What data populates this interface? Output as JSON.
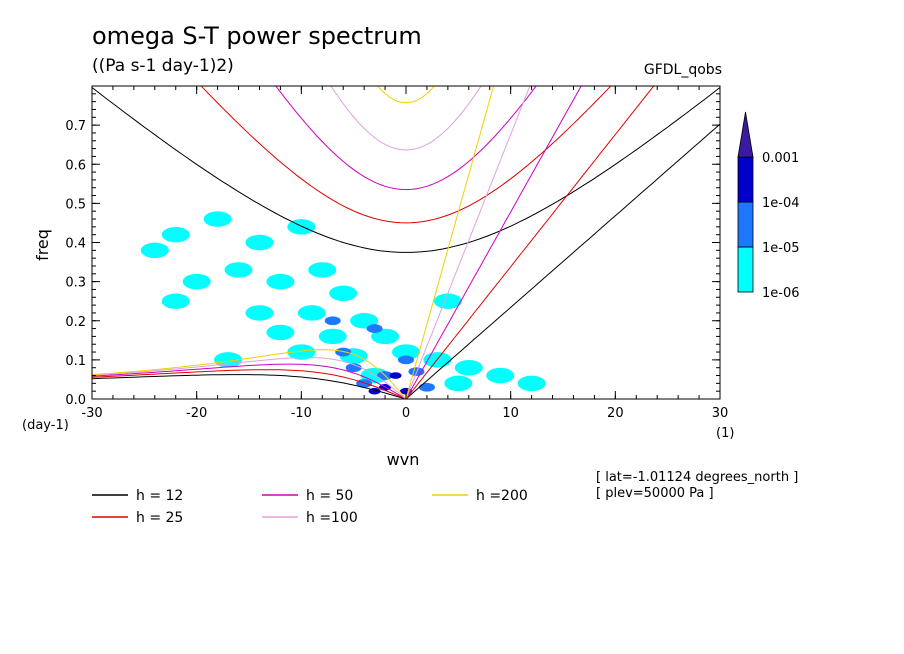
{
  "header": {
    "title": "omega S-T power spectrum",
    "units": "((Pa s-1 day-1)2)",
    "model": "GFDL_qobs"
  },
  "chart_data": {
    "type": "heatmap",
    "title": "omega S-T power spectrum",
    "subtitle": "((Pa s-1 day-1)2)",
    "xlabel": "wvn",
    "ylabel": "freq",
    "x_unit_label": "(1)",
    "y_unit_label": "(day-1)",
    "xlim": [
      -30,
      30
    ],
    "ylim": [
      0,
      0.8
    ],
    "xticks": [
      -30,
      -20,
      -10,
      0,
      10,
      20,
      30
    ],
    "yticks": [
      0.0,
      0.1,
      0.2,
      0.3,
      0.4,
      0.5,
      0.6,
      0.7
    ],
    "ytick_labels": [
      "0.0",
      "0.1",
      "0.2",
      "0.3",
      "0.4",
      "0.5",
      "0.6",
      "0.7"
    ],
    "colorbar": {
      "levels": [
        "1e-06",
        "1e-05",
        "1e-04",
        "0.001"
      ],
      "colors": [
        "#00ffff",
        "#1e78ff",
        "#0000cd",
        "#3a1aa0"
      ]
    },
    "power_blobs": [
      {
        "x": -22,
        "y": 0.42,
        "level": 0
      },
      {
        "x": -24,
        "y": 0.38,
        "level": 0
      },
      {
        "x": -18,
        "y": 0.46,
        "level": 0
      },
      {
        "x": -14,
        "y": 0.4,
        "level": 0
      },
      {
        "x": -10,
        "y": 0.44,
        "level": 0
      },
      {
        "x": -20,
        "y": 0.3,
        "level": 0
      },
      {
        "x": -16,
        "y": 0.33,
        "level": 0
      },
      {
        "x": -12,
        "y": 0.3,
        "level": 0
      },
      {
        "x": -8,
        "y": 0.33,
        "level": 0
      },
      {
        "x": -22,
        "y": 0.25,
        "level": 0
      },
      {
        "x": -6,
        "y": 0.27,
        "level": 0
      },
      {
        "x": -14,
        "y": 0.22,
        "level": 0
      },
      {
        "x": -9,
        "y": 0.22,
        "level": 0
      },
      {
        "x": -4,
        "y": 0.2,
        "level": 0
      },
      {
        "x": -12,
        "y": 0.17,
        "level": 0
      },
      {
        "x": -7,
        "y": 0.16,
        "level": 0
      },
      {
        "x": -2,
        "y": 0.16,
        "level": 0
      },
      {
        "x": -10,
        "y": 0.12,
        "level": 0
      },
      {
        "x": -5,
        "y": 0.11,
        "level": 0
      },
      {
        "x": 0,
        "y": 0.12,
        "level": 0
      },
      {
        "x": 3,
        "y": 0.1,
        "level": 0
      },
      {
        "x": 6,
        "y": 0.08,
        "level": 0
      },
      {
        "x": 9,
        "y": 0.06,
        "level": 0
      },
      {
        "x": 12,
        "y": 0.04,
        "level": 0
      },
      {
        "x": 4,
        "y": 0.25,
        "level": 0
      },
      {
        "x": 5,
        "y": 0.04,
        "level": 0
      },
      {
        "x": -3,
        "y": 0.06,
        "level": 0
      },
      {
        "x": -17,
        "y": 0.1,
        "level": 0
      },
      {
        "x": -7,
        "y": 0.2,
        "level": 1
      },
      {
        "x": -3,
        "y": 0.18,
        "level": 1
      },
      {
        "x": -5,
        "y": 0.08,
        "level": 1
      },
      {
        "x": -2,
        "y": 0.06,
        "level": 1
      },
      {
        "x": 1,
        "y": 0.07,
        "level": 1
      },
      {
        "x": 2,
        "y": 0.03,
        "level": 1
      },
      {
        "x": -4,
        "y": 0.04,
        "level": 1
      },
      {
        "x": -6,
        "y": 0.12,
        "level": 1
      },
      {
        "x": 0,
        "y": 0.1,
        "level": 1
      },
      {
        "x": -2,
        "y": 0.03,
        "level": 2
      },
      {
        "x": -1,
        "y": 0.06,
        "level": 2
      },
      {
        "x": -3,
        "y": 0.02,
        "level": 2
      },
      {
        "x": 0,
        "y": 0.02,
        "level": 2
      }
    ],
    "series": [
      {
        "name": "h = 12",
        "color": "#000000",
        "depth_m": 12
      },
      {
        "name": "h = 25",
        "color": "#e00000",
        "depth_m": 25
      },
      {
        "name": "h = 50",
        "color": "#d000c0",
        "depth_m": 50
      },
      {
        "name": "h =100",
        "color": "#e0a0e0",
        "depth_m": 100
      },
      {
        "name": "h =200",
        "color": "#f0d000",
        "depth_m": 200
      }
    ],
    "grid": false,
    "legend_placement": "bottom"
  },
  "footer": {
    "lat_info": "[ lat=-1.01124 degrees_north ]",
    "plev_info": "[ plev=50000 Pa ]"
  }
}
